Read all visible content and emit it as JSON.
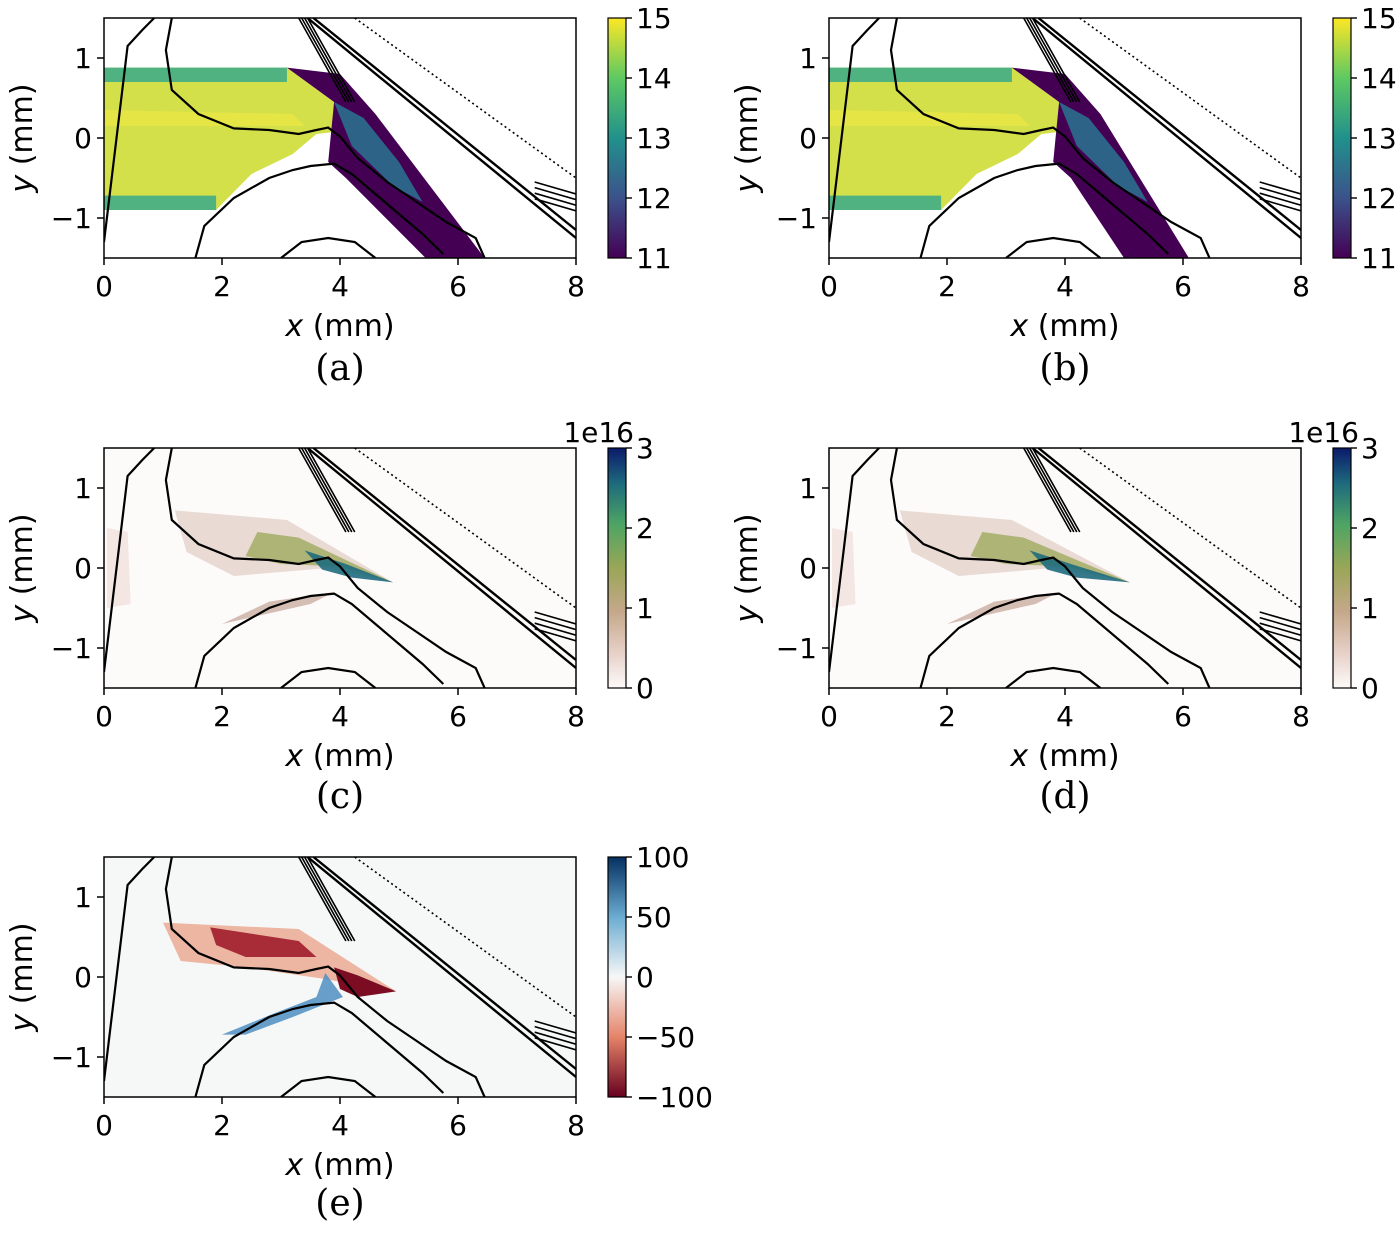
{
  "chart_data": [
    {
      "type": "heatmap",
      "panel": "(a)",
      "xlabel_var": "x",
      "xlabel_unit": " (mm)",
      "ylabel_var": "y",
      "ylabel_unit": " (mm)",
      "xlim": [
        0,
        8
      ],
      "ylim": [
        -1.5,
        1.5
      ],
      "xticks": [
        0,
        2,
        4,
        6,
        8
      ],
      "yticks": [
        -1,
        0,
        1
      ],
      "colorbar": {
        "colormap": "viridis",
        "range": [
          11,
          15
        ],
        "ticks": [
          11,
          12,
          13,
          14,
          15
        ],
        "multiplier": ""
      },
      "field": "jet",
      "jet_tip": [
        6.2,
        -1.5
      ],
      "jet_spread": 0.25
    },
    {
      "type": "heatmap",
      "panel": "(b)",
      "xlabel_var": "x",
      "xlabel_unit": " (mm)",
      "ylabel_var": "y",
      "ylabel_unit": " (mm)",
      "xlim": [
        0,
        8
      ],
      "ylim": [
        -1.5,
        1.5
      ],
      "xticks": [
        0,
        2,
        4,
        6,
        8
      ],
      "yticks": [
        -1,
        0,
        1
      ],
      "colorbar": {
        "colormap": "viridis",
        "range": [
          11,
          15
        ],
        "ticks": [
          11,
          12,
          13,
          14,
          15
        ],
        "multiplier": ""
      },
      "field": "jet",
      "jet_tip": [
        5.8,
        -1.5
      ],
      "jet_spread": 0.3
    },
    {
      "type": "heatmap",
      "panel": "(c)",
      "xlabel_var": "x",
      "xlabel_unit": " (mm)",
      "ylabel_var": "y",
      "ylabel_unit": " (mm)",
      "xlim": [
        0,
        8
      ],
      "ylim": [
        -1.5,
        1.5
      ],
      "xticks": [
        0,
        2,
        4,
        6,
        8
      ],
      "yticks": [
        -1,
        0,
        1
      ],
      "colorbar": {
        "colormap": "gist_earth_r",
        "range": [
          0,
          3
        ],
        "ticks": [
          0,
          1,
          2,
          3
        ],
        "multiplier": "1e16"
      },
      "field": "density",
      "density_tip": [
        4.9,
        -0.18
      ]
    },
    {
      "type": "heatmap",
      "panel": "(d)",
      "xlabel_var": "x",
      "xlabel_unit": " (mm)",
      "ylabel_var": "y",
      "ylabel_unit": " (mm)",
      "xlim": [
        0,
        8
      ],
      "ylim": [
        -1.5,
        1.5
      ],
      "xticks": [
        0,
        2,
        4,
        6,
        8
      ],
      "yticks": [
        -1,
        0,
        1
      ],
      "colorbar": {
        "colormap": "gist_earth_r",
        "range": [
          0,
          3
        ],
        "ticks": [
          0,
          1,
          2,
          3
        ],
        "multiplier": "1e16"
      },
      "field": "density",
      "density_tip": [
        5.1,
        -0.18
      ]
    },
    {
      "type": "heatmap",
      "panel": "(e)",
      "xlabel_var": "x",
      "xlabel_unit": " (mm)",
      "ylabel_var": "y",
      "ylabel_unit": " (mm)",
      "xlim": [
        0,
        8
      ],
      "ylim": [
        -1.5,
        1.5
      ],
      "xticks": [
        0,
        2,
        4,
        6,
        8
      ],
      "yticks": [
        -1,
        0,
        1
      ],
      "colorbar": {
        "colormap": "RdBu",
        "range": [
          -100,
          100
        ],
        "ticks": [
          -100,
          -50,
          0,
          50,
          100
        ],
        "multiplier": ""
      },
      "field": "difference",
      "density_tip": [
        4.95,
        -0.18
      ]
    }
  ],
  "overlay_contours": {
    "description_color": "#000000",
    "body_curve": [
      [
        1.15,
        1.5
      ],
      [
        1.05,
        1.1
      ],
      [
        1.15,
        0.6
      ],
      [
        1.6,
        0.3
      ],
      [
        2.2,
        0.12
      ],
      [
        2.8,
        0.1
      ],
      [
        3.3,
        0.05
      ],
      [
        3.6,
        0.1
      ],
      [
        3.8,
        0.13
      ],
      [
        4.0,
        0.02
      ],
      [
        4.3,
        -0.25
      ],
      [
        4.8,
        -0.55
      ],
      [
        5.3,
        -0.8
      ],
      [
        5.8,
        -1.05
      ],
      [
        6.3,
        -1.25
      ],
      [
        6.45,
        -1.5
      ]
    ],
    "lower_curve": [
      [
        1.55,
        -1.5
      ],
      [
        1.7,
        -1.1
      ],
      [
        2.2,
        -0.75
      ],
      [
        2.8,
        -0.5
      ],
      [
        3.2,
        -0.4
      ],
      [
        3.5,
        -0.35
      ],
      [
        3.9,
        -0.32
      ],
      [
        4.2,
        -0.45
      ],
      [
        4.6,
        -0.7
      ],
      [
        5.0,
        -0.95
      ],
      [
        5.4,
        -1.2
      ],
      [
        5.75,
        -1.45
      ]
    ],
    "bottom_arc": [
      [
        3.0,
        -1.5
      ],
      [
        3.35,
        -1.3
      ],
      [
        3.8,
        -1.25
      ],
      [
        4.25,
        -1.3
      ],
      [
        4.6,
        -1.5
      ]
    ],
    "top_left_line": [
      [
        0,
        -1.3
      ],
      [
        0.4,
        1.15
      ],
      [
        0.65,
        1.35
      ],
      [
        0.85,
        1.5
      ]
    ],
    "plate_edges": [
      [
        [
          3.45,
          1.5
        ],
        [
          8.0,
          -1.25
        ]
      ],
      [
        [
          3.55,
          1.5
        ],
        [
          8.0,
          -1.15
        ]
      ],
      [
        [
          4.25,
          1.5
        ],
        [
          8.0,
          -0.5
        ]
      ]
    ]
  }
}
